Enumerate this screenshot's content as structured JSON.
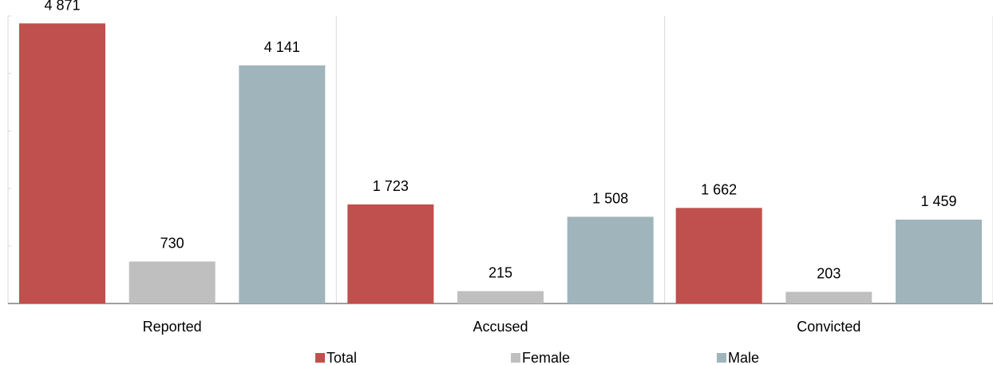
{
  "chart_data": {
    "type": "bar",
    "categories": [
      "Reported",
      "Accused",
      "Convicted"
    ],
    "series": [
      {
        "name": "Total",
        "values": [
          4871,
          1723,
          1662
        ],
        "labels": [
          "4 871",
          "1 723",
          "1 662"
        ],
        "color": "#c0504d"
      },
      {
        "name": "Female",
        "values": [
          730,
          215,
          203
        ],
        "labels": [
          "730",
          "215",
          "203"
        ],
        "color": "#bfbfbf"
      },
      {
        "name": "Male",
        "values": [
          4141,
          1508,
          1459
        ],
        "labels": [
          "4 141",
          "1 508",
          "1 459"
        ],
        "color": "#a0b4bc"
      }
    ],
    "title": "",
    "xlabel": "",
    "ylabel": "",
    "ylim": [
      0,
      5000
    ],
    "grid": true,
    "legend_position": "bottom"
  }
}
